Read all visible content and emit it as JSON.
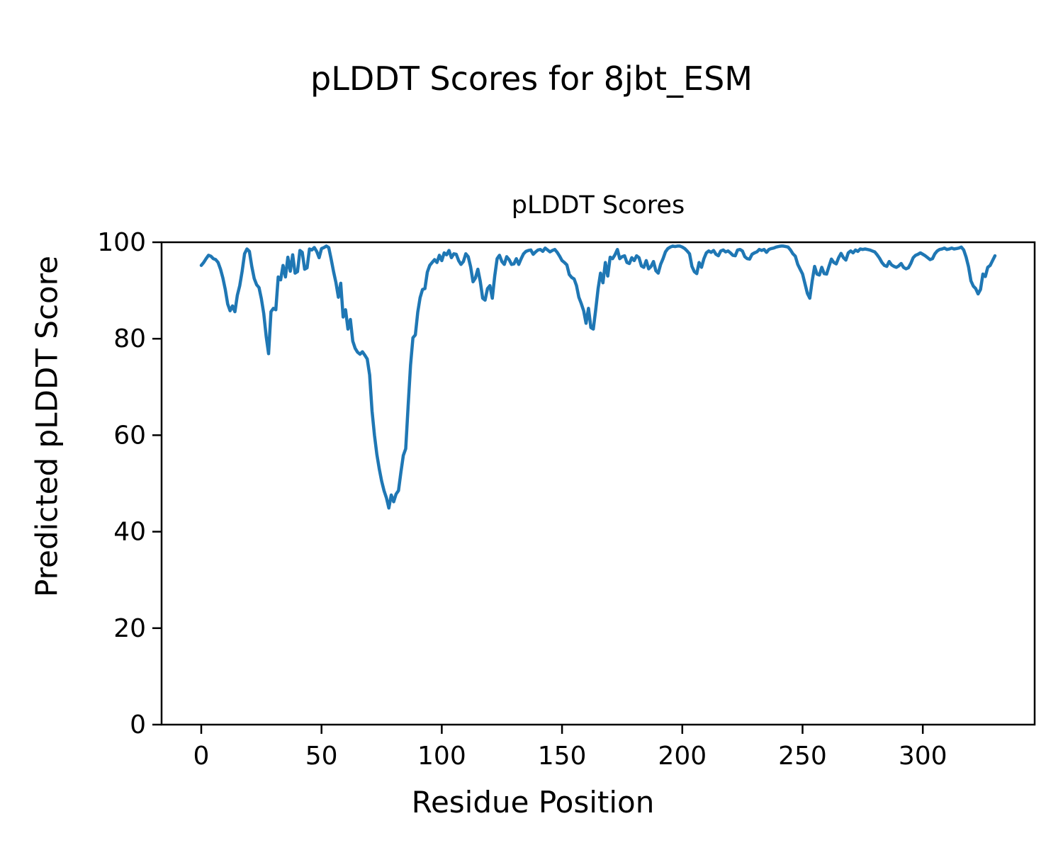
{
  "chart_data": {
    "type": "line",
    "suptitle": "pLDDT Scores for 8jbt_ESM",
    "title": "pLDDT Scores",
    "xlabel": "Residue Position",
    "ylabel": "Predicted pLDDT Score",
    "legend": "none",
    "grid": false,
    "line_color": "#1f77b4",
    "xlim": [
      -16.5,
      346.5
    ],
    "ylim": [
      0,
      100
    ],
    "x_ticks": [
      0,
      50,
      100,
      150,
      200,
      250,
      300
    ],
    "y_ticks": [
      0,
      20,
      40,
      60,
      80,
      100
    ],
    "x0": 0,
    "x_step": 1,
    "series_name": "pLDDT per residue",
    "values": [
      95.2,
      95.8,
      96.6,
      97.3,
      97.1,
      96.6,
      96.4,
      95.8,
      94.4,
      92.6,
      90.2,
      87.2,
      85.8,
      86.8,
      85.6,
      89.0,
      91.0,
      94.0,
      97.6,
      98.6,
      98.1,
      95.0,
      92.5,
      91.2,
      90.6,
      88.3,
      85.2,
      80.5,
      76.9,
      85.6,
      86.3,
      86.0,
      92.8,
      92.2,
      95.2,
      92.8,
      96.9,
      94.0,
      97.4,
      93.6,
      93.9,
      98.3,
      97.9,
      94.4,
      94.7,
      98.6,
      98.4,
      98.9,
      98.1,
      96.8,
      98.7,
      98.9,
      99.2,
      98.9,
      96.5,
      93.9,
      91.6,
      88.6,
      91.5,
      84.5,
      86.0,
      82.0,
      84.0,
      79.5,
      78.0,
      77.2,
      76.8,
      77.3,
      76.6,
      75.8,
      72.5,
      65.0,
      60.0,
      56.0,
      53.0,
      50.5,
      48.5,
      47.0,
      44.9,
      47.6,
      46.2,
      47.8,
      48.5,
      52.3,
      55.8,
      57.2,
      66.0,
      74.5,
      80.2,
      80.8,
      85.5,
      88.5,
      90.2,
      90.4,
      93.8,
      95.2,
      95.8,
      96.4,
      95.8,
      97.3,
      96.2,
      97.8,
      97.4,
      98.3,
      96.8,
      97.6,
      97.5,
      96.2,
      95.4,
      96.0,
      97.6,
      97.0,
      94.9,
      91.8,
      92.6,
      94.4,
      91.9,
      88.4,
      88.0,
      90.4,
      91.0,
      88.4,
      93.0,
      96.6,
      97.3,
      96.0,
      95.4,
      97.0,
      96.4,
      95.4,
      95.5,
      96.6,
      95.4,
      96.6,
      97.6,
      98.1,
      98.3,
      98.4,
      97.5,
      98.0,
      98.4,
      98.5,
      98.1,
      98.8,
      98.4,
      98.0,
      98.3,
      98.5,
      97.9,
      97.1,
      96.2,
      95.8,
      95.3,
      93.3,
      92.7,
      92.4,
      91.0,
      88.6,
      87.3,
      85.8,
      83.2,
      86.3,
      82.3,
      82.0,
      86.0,
      90.4,
      93.6,
      91.6,
      95.8,
      93.0,
      96.9,
      96.6,
      97.4,
      98.5,
      96.6,
      97.0,
      97.2,
      95.8,
      95.6,
      96.8,
      96.2,
      97.2,
      96.8,
      95.1,
      94.8,
      96.2,
      94.5,
      95.0,
      96.0,
      94.1,
      93.6,
      95.4,
      96.6,
      98.0,
      98.7,
      99.0,
      99.2,
      99.1,
      99.2,
      99.2,
      99.0,
      98.7,
      98.2,
      97.6,
      95.0,
      93.9,
      93.5,
      95.8,
      94.8,
      96.6,
      97.8,
      98.2,
      97.9,
      98.3,
      97.5,
      97.2,
      98.2,
      98.4,
      98.0,
      98.2,
      97.8,
      97.3,
      97.2,
      98.4,
      98.5,
      98.2,
      97.0,
      96.6,
      96.5,
      97.5,
      97.8,
      98.0,
      98.5,
      98.3,
      98.5,
      97.9,
      98.5,
      98.7,
      98.8,
      99.0,
      99.1,
      99.2,
      99.2,
      99.1,
      99.0,
      98.4,
      97.6,
      97.1,
      95.4,
      94.4,
      93.4,
      91.4,
      89.4,
      88.4,
      92.0,
      95.0,
      93.4,
      93.2,
      94.8,
      93.5,
      93.4,
      95.0,
      96.5,
      95.8,
      95.5,
      96.8,
      97.7,
      96.8,
      96.3,
      97.8,
      98.2,
      97.8,
      98.4,
      98.1,
      98.6,
      98.5,
      98.6,
      98.5,
      98.4,
      98.2,
      98.0,
      97.4,
      96.7,
      95.8,
      95.2,
      95.0,
      96.0,
      95.3,
      95.0,
      94.8,
      95.1,
      95.6,
      94.8,
      94.5,
      94.7,
      95.6,
      96.8,
      97.3,
      97.5,
      97.8,
      97.5,
      97.2,
      96.8,
      96.4,
      96.6,
      97.6,
      98.2,
      98.5,
      98.6,
      98.8,
      98.5,
      98.6,
      98.8,
      98.6,
      98.7,
      98.8,
      99.0,
      98.4,
      96.9,
      94.9,
      92.0,
      90.9,
      90.4,
      89.3,
      90.2,
      93.4,
      92.9,
      94.8,
      95.2,
      96.2,
      97.2
    ]
  }
}
